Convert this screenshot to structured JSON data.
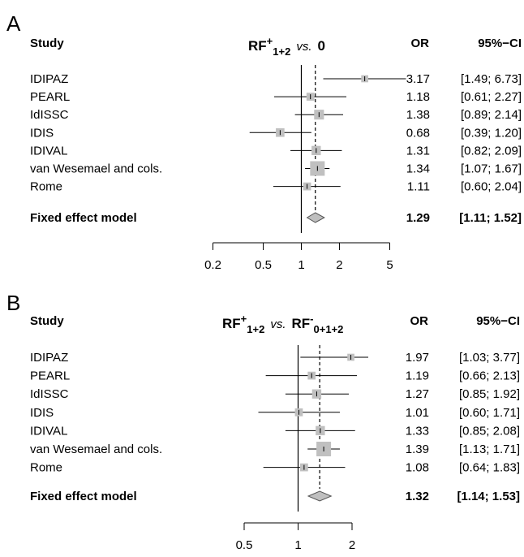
{
  "chart_data": [
    {
      "type": "forest",
      "panel_label": "A",
      "title_parts": {
        "left": "RF",
        "left_sup": "+",
        "left_sub": "1+2",
        "vs": "vs.",
        "right": "0",
        "right_sup": "",
        "right_sub": ""
      },
      "column_headers": {
        "study": "Study",
        "or": "OR",
        "ci": "95%−CI"
      },
      "x_scale": "log",
      "xlim": [
        0.2,
        5
      ],
      "xticks": [
        "0.2",
        "0.5",
        "1",
        "2",
        "5"
      ],
      "xtick_values": [
        0.2,
        0.5,
        1,
        2,
        5
      ],
      "null_line": 1,
      "studies": [
        {
          "name": "IDIPAZ",
          "or": 3.17,
          "ci_low": 1.49,
          "ci_high": 6.73,
          "weight": 2,
          "or_text": "3.17",
          "ci_text": "[1.49; 6.73]"
        },
        {
          "name": "PEARL",
          "or": 1.18,
          "ci_low": 0.61,
          "ci_high": 2.27,
          "weight": 3,
          "or_text": "1.18",
          "ci_text": "[0.61; 2.27]"
        },
        {
          "name": "IdISSC",
          "or": 1.38,
          "ci_low": 0.89,
          "ci_high": 2.14,
          "weight": 6,
          "or_text": "1.38",
          "ci_text": "[0.89; 2.14]"
        },
        {
          "name": "IDIS",
          "or": 0.68,
          "ci_low": 0.39,
          "ci_high": 1.2,
          "weight": 4,
          "or_text": "0.68",
          "ci_text": "[0.39; 1.20]"
        },
        {
          "name": "IDIVAL",
          "or": 1.31,
          "ci_low": 0.82,
          "ci_high": 2.09,
          "weight": 5,
          "or_text": "1.31",
          "ci_text": "[0.82; 2.09]"
        },
        {
          "name": "van Wesemael and cols.",
          "or": 1.34,
          "ci_low": 1.07,
          "ci_high": 1.67,
          "weight": 18,
          "or_text": "1.34",
          "ci_text": "[1.07; 1.67]"
        },
        {
          "name": "Rome",
          "or": 1.11,
          "ci_low": 0.6,
          "ci_high": 2.04,
          "weight": 3,
          "or_text": "1.11",
          "ci_text": "[0.60; 2.04]"
        }
      ],
      "summary": {
        "name": "Fixed effect model",
        "or": 1.29,
        "ci_low": 1.11,
        "ci_high": 1.52,
        "or_text": "1.29",
        "ci_text": "[1.11; 1.52]"
      }
    },
    {
      "type": "forest",
      "panel_label": "B",
      "title_parts": {
        "left": "RF",
        "left_sup": "+",
        "left_sub": "1+2",
        "vs": "vs.",
        "right": "RF",
        "right_sup": "-",
        "right_sub": "0+1+2"
      },
      "column_headers": {
        "study": "Study",
        "or": "OR",
        "ci": "95%−CI"
      },
      "x_scale": "log",
      "xlim": [
        0.5,
        2
      ],
      "xticks": [
        "0.5",
        "1",
        "2"
      ],
      "xtick_values": [
        0.5,
        1,
        2
      ],
      "null_line": 1,
      "studies": [
        {
          "name": "IDIPAZ",
          "or": 1.97,
          "ci_low": 1.03,
          "ci_high": 3.77,
          "weight": 2,
          "or_text": "1.97",
          "ci_text": "[1.03; 3.77]"
        },
        {
          "name": "PEARL",
          "or": 1.19,
          "ci_low": 0.66,
          "ci_high": 2.13,
          "weight": 3,
          "or_text": "1.19",
          "ci_text": "[0.66; 2.13]"
        },
        {
          "name": "IdISSC",
          "or": 1.27,
          "ci_low": 0.85,
          "ci_high": 1.92,
          "weight": 5,
          "or_text": "1.27",
          "ci_text": "[0.85; 1.92]"
        },
        {
          "name": "IDIS",
          "or": 1.01,
          "ci_low": 0.6,
          "ci_high": 1.71,
          "weight": 3,
          "or_text": "1.01",
          "ci_text": "[0.60; 1.71]"
        },
        {
          "name": "IDIVAL",
          "or": 1.33,
          "ci_low": 0.85,
          "ci_high": 2.08,
          "weight": 5,
          "or_text": "1.33",
          "ci_text": "[0.85; 2.08]"
        },
        {
          "name": "van Wesemael and cols.",
          "or": 1.39,
          "ci_low": 1.13,
          "ci_high": 1.71,
          "weight": 18,
          "or_text": "1.39",
          "ci_text": "[1.13; 1.71]"
        },
        {
          "name": "Rome",
          "or": 1.08,
          "ci_low": 0.64,
          "ci_high": 1.83,
          "weight": 3,
          "or_text": "1.08",
          "ci_text": "[0.64; 1.83]"
        }
      ],
      "summary": {
        "name": "Fixed effect model",
        "or": 1.32,
        "ci_low": 1.14,
        "ci_high": 1.53,
        "or_text": "1.32",
        "ci_text": "[1.14; 1.53]"
      }
    }
  ]
}
